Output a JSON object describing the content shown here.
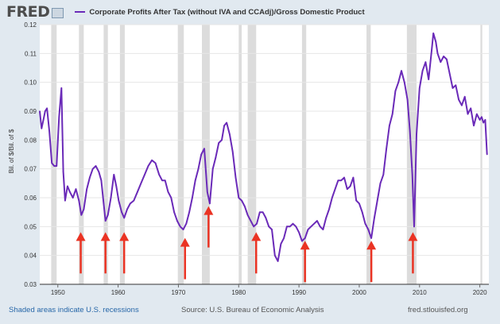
{
  "header": {
    "logo_text": "FRED",
    "series_title": "Corporate Profits After Tax (without IVA and CCAdj)/Gross Domestic Product"
  },
  "footer": {
    "recession_note": "Shaded areas indicate U.S. recessions",
    "source": "Source: U.S. Bureau of Economic Analysis",
    "site": "fred.stlouisfed.org"
  },
  "colors": {
    "line": "#6a2ab8",
    "recession": "#dcdcdc",
    "arrow": "#ea3323",
    "background": "#e1e9f0",
    "plot_background": "#ffffff"
  },
  "chart_data": {
    "type": "line",
    "title": "Corporate Profits After Tax (without IVA and CCAdj)/Gross Domestic Product",
    "ylabel": "Bil. of $/Bil. of $",
    "xlabel": "",
    "xlim": [
      1947,
      2021.5
    ],
    "ylim": [
      0.03,
      0.12
    ],
    "y_ticks": [
      "0.03",
      "0.04",
      "0.05",
      "0.06",
      "0.07",
      "0.08",
      "0.09",
      "0.10",
      "0.11",
      "0.12"
    ],
    "x_ticks": [
      "1950",
      "1960",
      "1970",
      "1980",
      "1990",
      "2000",
      "2010",
      "2020"
    ],
    "grid": "horizontal",
    "recessions": [
      [
        1948.9,
        1949.8
      ],
      [
        1953.5,
        1954.3
      ],
      [
        1957.6,
        1958.3
      ],
      [
        1960.3,
        1961.1
      ],
      [
        1969.9,
        1970.9
      ],
      [
        1973.9,
        1975.2
      ],
      [
        1980.0,
        1980.5
      ],
      [
        1981.5,
        1982.9
      ],
      [
        1990.5,
        1991.2
      ],
      [
        2001.2,
        2001.9
      ],
      [
        2007.9,
        2009.5
      ],
      [
        2020.1,
        2020.4
      ]
    ],
    "arrows": [
      {
        "x": 1953.8,
        "y": 0.05
      },
      {
        "x": 1957.9,
        "y": 0.05
      },
      {
        "x": 1961.0,
        "y": 0.05
      },
      {
        "x": 1971.1,
        "y": 0.048
      },
      {
        "x": 1975.0,
        "y": 0.059
      },
      {
        "x": 1982.9,
        "y": 0.05
      },
      {
        "x": 1991.0,
        "y": 0.047
      },
      {
        "x": 2002.0,
        "y": 0.047
      },
      {
        "x": 2008.9,
        "y": 0.05
      }
    ],
    "series": [
      {
        "name": "Corporate Profits After Tax (without IVA and CCAdj)/Gross Domestic Product",
        "x": [
          1947.0,
          1947.3,
          1947.6,
          1947.9,
          1948.2,
          1948.6,
          1949.0,
          1949.4,
          1949.8,
          1950.2,
          1950.6,
          1950.9,
          1951.2,
          1951.6,
          1952.0,
          1952.5,
          1953.0,
          1953.5,
          1953.9,
          1954.3,
          1954.8,
          1955.3,
          1955.8,
          1956.3,
          1956.8,
          1957.2,
          1957.6,
          1957.9,
          1958.3,
          1958.8,
          1959.3,
          1959.7,
          1960.1,
          1960.6,
          1961.0,
          1961.5,
          1962.0,
          1962.6,
          1963.2,
          1963.8,
          1964.4,
          1965.0,
          1965.6,
          1966.2,
          1966.8,
          1967.3,
          1967.8,
          1968.3,
          1968.8,
          1969.3,
          1969.8,
          1970.3,
          1970.8,
          1971.3,
          1971.8,
          1972.3,
          1972.8,
          1973.3,
          1973.8,
          1974.3,
          1974.8,
          1975.2,
          1975.7,
          1976.2,
          1976.7,
          1977.2,
          1977.6,
          1978.0,
          1978.5,
          1979.0,
          1979.5,
          1980.0,
          1980.5,
          1981.0,
          1981.5,
          1982.0,
          1982.5,
          1983.0,
          1983.5,
          1984.0,
          1984.5,
          1985.0,
          1985.5,
          1986.0,
          1986.5,
          1987.0,
          1987.5,
          1988.0,
          1988.5,
          1989.0,
          1989.5,
          1990.0,
          1990.5,
          1991.0,
          1991.5,
          1992.0,
          1992.5,
          1993.0,
          1993.5,
          1994.0,
          1994.5,
          1995.0,
          1995.5,
          1996.0,
          1996.5,
          1997.0,
          1997.5,
          1998.0,
          1998.5,
          1999.0,
          1999.5,
          2000.0,
          2000.5,
          2001.0,
          2001.5,
          2002.0,
          2002.5,
          2003.0,
          2003.5,
          2004.0,
          2004.5,
          2005.0,
          2005.5,
          2006.0,
          2006.5,
          2007.0,
          2007.5,
          2008.0,
          2008.4,
          2008.8,
          2009.1,
          2009.5,
          2010.0,
          2010.5,
          2011.0,
          2011.5,
          2012.0,
          2012.3,
          2012.7,
          2013.0,
          2013.5,
          2014.0,
          2014.5,
          2015.0,
          2015.5,
          2016.0,
          2016.5,
          2017.0,
          2017.5,
          2018.0,
          2018.5,
          2019.0,
          2019.5,
          2020.0,
          2020.3,
          2020.6,
          2020.9,
          2021.2
        ],
        "values": [
          0.09,
          0.084,
          0.087,
          0.09,
          0.091,
          0.083,
          0.072,
          0.071,
          0.071,
          0.088,
          0.098,
          0.069,
          0.059,
          0.064,
          0.062,
          0.06,
          0.063,
          0.059,
          0.054,
          0.056,
          0.063,
          0.067,
          0.07,
          0.071,
          0.069,
          0.066,
          0.058,
          0.052,
          0.054,
          0.06,
          0.068,
          0.064,
          0.059,
          0.055,
          0.053,
          0.056,
          0.058,
          0.059,
          0.062,
          0.065,
          0.068,
          0.071,
          0.073,
          0.072,
          0.068,
          0.066,
          0.066,
          0.062,
          0.06,
          0.055,
          0.052,
          0.05,
          0.049,
          0.051,
          0.055,
          0.06,
          0.066,
          0.07,
          0.075,
          0.077,
          0.062,
          0.058,
          0.07,
          0.074,
          0.079,
          0.08,
          0.085,
          0.086,
          0.082,
          0.076,
          0.067,
          0.06,
          0.059,
          0.057,
          0.054,
          0.052,
          0.05,
          0.051,
          0.055,
          0.055,
          0.053,
          0.05,
          0.049,
          0.04,
          0.038,
          0.044,
          0.046,
          0.05,
          0.05,
          0.051,
          0.05,
          0.048,
          0.045,
          0.046,
          0.049,
          0.05,
          0.051,
          0.052,
          0.05,
          0.049,
          0.053,
          0.056,
          0.06,
          0.063,
          0.066,
          0.066,
          0.067,
          0.063,
          0.064,
          0.067,
          0.059,
          0.058,
          0.055,
          0.051,
          0.049,
          0.046,
          0.053,
          0.059,
          0.065,
          0.068,
          0.077,
          0.085,
          0.089,
          0.097,
          0.1,
          0.104,
          0.1,
          0.094,
          0.083,
          0.068,
          0.05,
          0.082,
          0.098,
          0.104,
          0.107,
          0.101,
          0.111,
          0.117,
          0.114,
          0.11,
          0.107,
          0.109,
          0.108,
          0.103,
          0.098,
          0.099,
          0.094,
          0.092,
          0.095,
          0.089,
          0.091,
          0.085,
          0.089,
          0.087,
          0.088,
          0.086,
          0.087,
          0.075
        ]
      }
    ]
  }
}
